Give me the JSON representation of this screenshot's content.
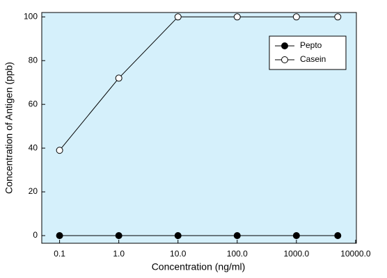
{
  "chart_data": {
    "type": "line",
    "xlabel": "Concentration (ng/ml)",
    "ylabel": "Concentration of Antigen (ppb)",
    "x": [
      0.1,
      1,
      10,
      100,
      1000,
      5000
    ],
    "series": [
      {
        "name": "Pepto",
        "color": "#000000",
        "marker": "filled",
        "values": [
          0,
          0,
          0,
          0,
          0,
          0
        ]
      },
      {
        "name": "Casein",
        "color": "#000000",
        "marker": "open",
        "values": [
          39,
          72,
          100,
          100,
          100,
          100
        ]
      }
    ],
    "xscale": "log",
    "xlim": [
      0.05,
      10300
    ],
    "xticks": [
      0.1,
      {
        "value": 1,
        "label": "1.0"
      },
      {
        "value": 10,
        "label": "10.0"
      },
      {
        "value": 100,
        "label": "100.0"
      },
      {
        "value": 1000,
        "label": "1000.0"
      },
      {
        "value": 10000,
        "label": "10000.0"
      }
    ],
    "ylim": [
      -3.5,
      102
    ],
    "yticks": [
      0,
      20,
      40,
      60,
      80,
      100
    ],
    "background": "#d5f0fb",
    "legend": "upper right"
  }
}
